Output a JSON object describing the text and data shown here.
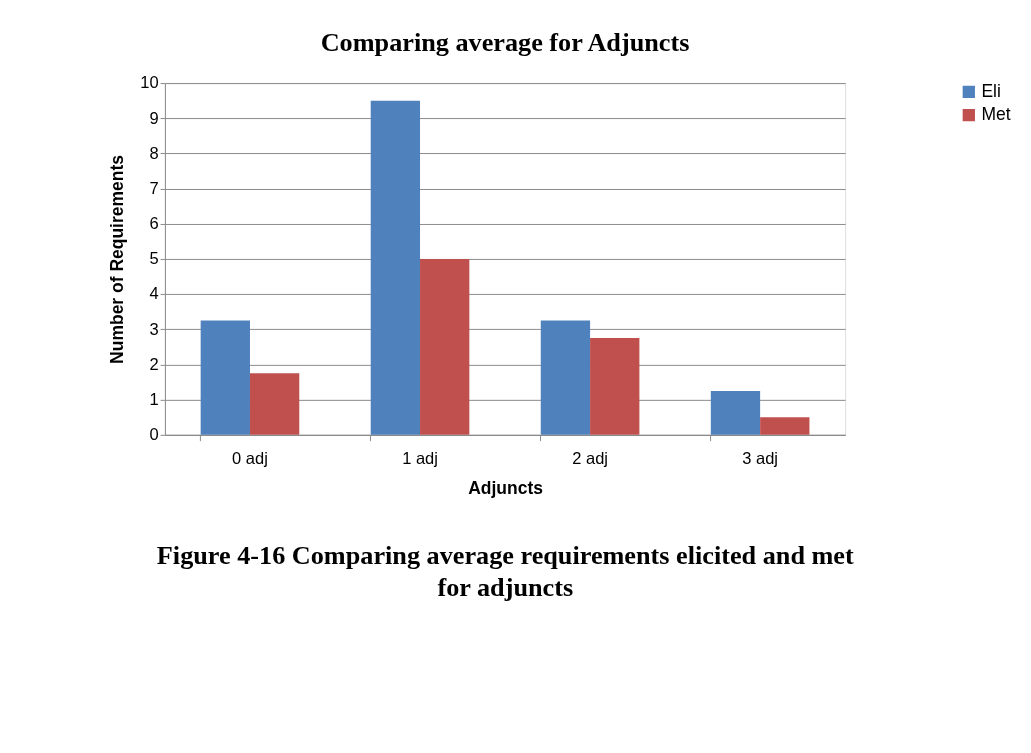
{
  "chart_data": {
    "type": "bar",
    "title": "Comparing average for Adjuncts",
    "xlabel": "Adjuncts",
    "ylabel": "Number  of Requirements",
    "categories": [
      "0 adj",
      "1 adj",
      "2 adj",
      "3 adj"
    ],
    "series": [
      {
        "name": "Eli",
        "color": "#4f81bd",
        "values": [
          3.25,
          9.5,
          3.25,
          1.25
        ]
      },
      {
        "name": "Met",
        "color": "#c0504d",
        "values": [
          1.75,
          5,
          2.75,
          0.5
        ]
      }
    ],
    "ylim": [
      0,
      10
    ],
    "yticks": [
      0,
      1,
      2,
      3,
      4,
      5,
      6,
      7,
      8,
      9,
      10
    ],
    "grid": "y",
    "legend": "right",
    "annotations": [
      "Figure 4-16 Comparing average requirements elicited and met for adjuncts"
    ]
  }
}
